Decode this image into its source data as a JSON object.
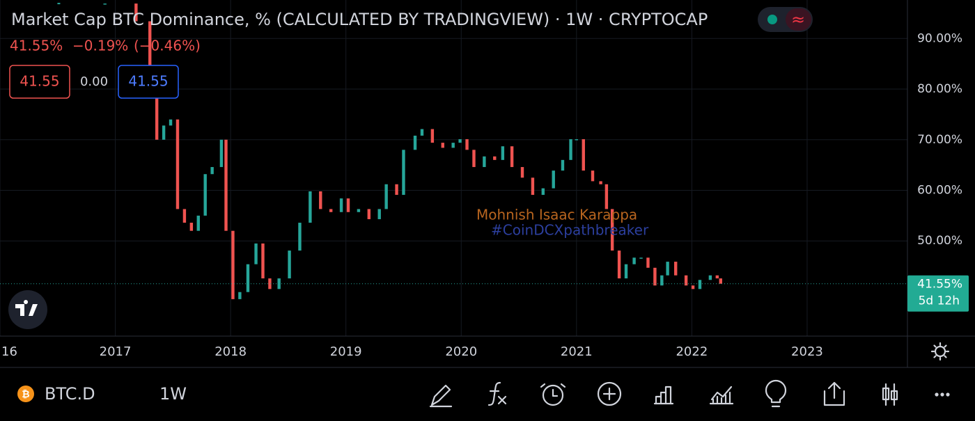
{
  "header": {
    "title": "Market Cap BTC Dominance, % (CALCULATED BY TRADINGVIEW) · 1W · CRYPTOCAP",
    "last": "41.55%",
    "change": "−0.19%",
    "change_pct": "(−0.46%)",
    "bid": "41.55",
    "spread": "0.00",
    "ask": "41.55",
    "badge_icon": "≈"
  },
  "watermark": [
    "Mohnish Isaac Karappa",
    "#CoinDCXpathbreaker"
  ],
  "chart_data": {
    "type": "candlestick",
    "xlim": [
      2016,
      2023.87
    ],
    "xticks": [
      {
        "value": 2016,
        "label": "16"
      },
      2017,
      2018,
      2019,
      2020,
      2021,
      2022,
      2023
    ],
    "ylim": [
      31.2,
      97.6
    ],
    "yticks": [
      {
        "value": 50,
        "label": "50.00%"
      },
      {
        "value": 60,
        "label": "60.00%"
      },
      {
        "value": 70,
        "label": "70.00%"
      },
      {
        "value": 80,
        "label": "80.00%"
      },
      {
        "value": 90,
        "label": "90.00%"
      }
    ],
    "grid": true,
    "up_color": "#26a69a",
    "down_color": "#ef5350",
    "x": [
      2016.51,
      2016.91,
      2017.18,
      2017.3,
      2017.36,
      2017.42,
      2017.48,
      2017.54,
      2017.6,
      2017.66,
      2017.72,
      2017.78,
      2017.84,
      2017.92,
      2017.96,
      2018.02,
      2018.08,
      2018.15,
      2018.22,
      2018.28,
      2018.34,
      2018.42,
      2018.51,
      2018.6,
      2018.69,
      2018.78,
      2018.87,
      2018.96,
      2019.02,
      2019.11,
      2019.2,
      2019.29,
      2019.35,
      2019.44,
      2019.5,
      2019.6,
      2019.66,
      2019.75,
      2019.84,
      2019.93,
      2019.99,
      2020.05,
      2020.11,
      2020.2,
      2020.29,
      2020.36,
      2020.44,
      2020.53,
      2020.62,
      2020.71,
      2020.8,
      2020.88,
      2020.95,
      2021.0,
      2021.06,
      2021.14,
      2021.21,
      2021.26,
      2021.31,
      2021.37,
      2021.43,
      2021.5,
      2021.56,
      2021.62,
      2021.68,
      2021.74,
      2021.79,
      2021.86,
      2021.95,
      2022.01,
      2022.07,
      2022.16,
      2022.22,
      2022.25
    ],
    "series": [
      {
        "name": "BTC.D",
        "values": [
          96.9,
          96.9,
          93.4,
          83.8,
          70,
          72.8,
          74,
          56.3,
          53.6,
          52,
          55,
          63.2,
          64.6,
          70,
          52,
          38.5,
          39.9,
          45.4,
          49.5,
          42.6,
          40.5,
          42.6,
          48.1,
          53.6,
          59.8,
          56.3,
          55.7,
          58.4,
          55.7,
          56.3,
          54.3,
          56.3,
          61.2,
          59.1,
          68,
          70.8,
          72.1,
          69.4,
          68.4,
          69.4,
          70.1,
          68,
          64.6,
          66.7,
          66,
          68.7,
          64.6,
          62.5,
          59.1,
          60.4,
          63.9,
          66,
          70.1,
          70.1,
          63.9,
          61.8,
          61.2,
          56.3,
          48.1,
          42.6,
          45.4,
          46.7,
          46.7,
          44.7,
          41.2,
          43.2,
          45.9,
          43.2,
          41.2,
          40.5,
          42.3,
          43.2,
          42.6,
          41.55
        ]
      }
    ],
    "last_price": {
      "value": 41.55,
      "label": "41.55%"
    },
    "countdown": "5d 12h"
  },
  "toolbar": {
    "symbol": "BTC.D",
    "interval": "1W"
  }
}
